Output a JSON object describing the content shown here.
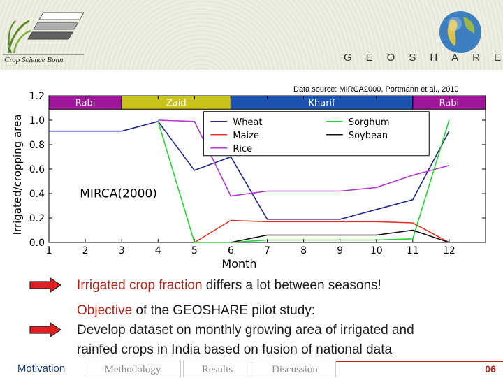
{
  "header": {
    "logo_text": "Crop Science Bonn",
    "brand": "GEOSHARE"
  },
  "source_note": "Data source: MIRCA2000, Portmann et al., 2010",
  "chart_data": {
    "type": "line",
    "annotation": "MIRCA(2000)",
    "xlabel": "Month",
    "ylabel": "Irrigated/cropping area",
    "xlim": [
      1,
      13
    ],
    "ylim": [
      0,
      1.2
    ],
    "x_ticks": [
      "1",
      "2",
      "3",
      "4",
      "5",
      "6",
      "7",
      "8",
      "9",
      "10",
      "11",
      "12"
    ],
    "y_ticks": [
      "0.0",
      "0.2",
      "0.4",
      "0.6",
      "0.8",
      "1.0",
      "1.2"
    ],
    "seasons": [
      {
        "label": "Rabi",
        "start": 1,
        "end": 3,
        "color": "#a0169a"
      },
      {
        "label": "Zaid",
        "start": 3,
        "end": 6,
        "color": "#c7c21c"
      },
      {
        "label": "Kharif",
        "start": 6,
        "end": 11,
        "color": "#1c52b0"
      },
      {
        "label": "Rabi",
        "start": 11,
        "end": 13,
        "color": "#a0169a"
      }
    ],
    "x": [
      1,
      2,
      3,
      4,
      5,
      6,
      7,
      8,
      9,
      10,
      11,
      12
    ],
    "series": [
      {
        "name": "Wheat",
        "color": "#1f2a8c",
        "values": [
          0.91,
          0.91,
          0.91,
          0.99,
          0.59,
          0.7,
          0.19,
          0.19,
          0.19,
          0.27,
          0.35,
          0.91
        ]
      },
      {
        "name": "Maize",
        "color": "#e03424",
        "values": [
          null,
          null,
          null,
          null,
          0.0,
          0.18,
          0.17,
          0.17,
          0.17,
          0.17,
          0.16,
          0.0
        ]
      },
      {
        "name": "Rice",
        "color": "#b039d0",
        "values": [
          null,
          null,
          null,
          1.0,
          0.99,
          0.38,
          0.42,
          0.42,
          0.42,
          0.45,
          0.55,
          0.63
        ]
      },
      {
        "name": "Sorghum",
        "color": "#2ad23a",
        "values": [
          null,
          null,
          null,
          0.99,
          0.0,
          0.0,
          0.02,
          0.02,
          0.02,
          0.02,
          0.03,
          1.0
        ]
      },
      {
        "name": "Soybean",
        "color": "#101010",
        "values": [
          null,
          null,
          null,
          null,
          null,
          0.0,
          0.06,
          0.06,
          0.06,
          0.06,
          0.1,
          0.0
        ]
      }
    ]
  },
  "bullets": {
    "b1_highlight": "Irrigated crop fraction",
    "b1_rest": " differs a lot between seasons!",
    "b2_highlight": "Objective",
    "b2_rest": " of the GEOSHARE pilot study:",
    "b2_line2": "Develop dataset on monthly growing area of irrigated and",
    "b2_line3": "rainfed crops in India based on fusion of national data"
  },
  "footer": {
    "motivation": "Motivation",
    "methodology": "Methodology",
    "results": "Results",
    "discussion": "Discussion",
    "page": "06"
  },
  "colors": {
    "accent": "#b22418",
    "nav": "#1a3e7a"
  }
}
